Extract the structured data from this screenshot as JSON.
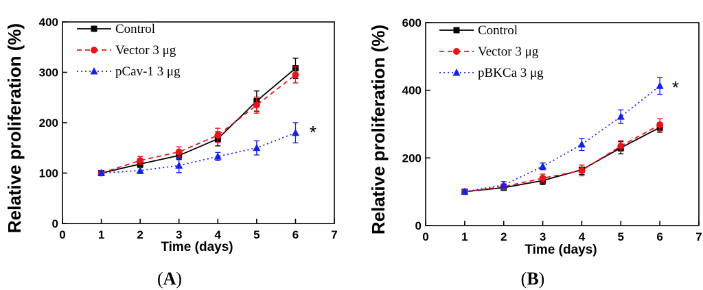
{
  "chart_data": [
    {
      "type": "line",
      "panel_label": "A",
      "panel_letter": "A",
      "xlabel": "Time (days)",
      "ylabel": "Relative proliferation (%)",
      "xlim": [
        0,
        7
      ],
      "ylim": [
        0,
        400
      ],
      "xticks": [
        0,
        1,
        2,
        3,
        4,
        5,
        6,
        7
      ],
      "yticks": [
        0,
        100,
        200,
        300,
        400
      ],
      "legend_position": "top-left",
      "annotation": "*",
      "annotation_x": 6.45,
      "annotation_y": 185,
      "x": [
        1,
        2,
        3,
        4,
        5,
        6
      ],
      "series": [
        {
          "name": "Control",
          "legend_label": "Control",
          "color": "#000000",
          "dash": "solid",
          "marker": "square",
          "values": [
            100,
            118,
            135,
            168,
            243,
            308
          ],
          "errors": [
            4,
            6,
            8,
            14,
            20,
            20
          ]
        },
        {
          "name": "Vector 3 μg",
          "legend_label": "Vector  3 μg",
          "color": "#e8141b",
          "dash": "dashed",
          "marker": "circle",
          "values": [
            100,
            125,
            142,
            175,
            235,
            295
          ],
          "errors": [
            4,
            8,
            10,
            14,
            16,
            16
          ]
        },
        {
          "name": "pCav-1 3 μg",
          "legend_label": "pCav-1 3 μg",
          "color": "#1520e8",
          "dash": "dotted",
          "marker": "triangle",
          "values": [
            100,
            105,
            115,
            133,
            150,
            180
          ],
          "errors": [
            4,
            6,
            14,
            8,
            14,
            20
          ]
        }
      ]
    },
    {
      "type": "line",
      "panel_label": "B",
      "panel_letter": "B",
      "xlabel": "Time (days)",
      "ylabel": "Relative proliferation (%)",
      "xlim": [
        0,
        7
      ],
      "ylim": [
        0,
        600
      ],
      "xticks": [
        0,
        1,
        2,
        3,
        4,
        5,
        6,
        7
      ],
      "yticks": [
        0,
        200,
        400,
        600
      ],
      "legend_position": "top-left",
      "annotation": "*",
      "annotation_x": 6.4,
      "annotation_y": 415,
      "x": [
        1,
        2,
        3,
        4,
        5,
        6
      ],
      "series": [
        {
          "name": "Control",
          "legend_label": "Control",
          "color": "#000000",
          "dash": "solid",
          "marker": "square",
          "values": [
            100,
            112,
            133,
            165,
            230,
            290
          ],
          "errors": [
            6,
            8,
            12,
            14,
            18,
            14
          ]
        },
        {
          "name": "Vector 3 μg",
          "legend_label": "Vector 3 μg",
          "color": "#e8141b",
          "dash": "dashed",
          "marker": "circle",
          "values": [
            100,
            115,
            140,
            163,
            235,
            298
          ],
          "errors": [
            6,
            8,
            12,
            16,
            16,
            18
          ]
        },
        {
          "name": "pBKCa 3 μg",
          "legend_label": "pBKCa 3 μg",
          "color": "#1520e8",
          "dash": "dotted",
          "marker": "triangle",
          "values": [
            100,
            120,
            175,
            240,
            322,
            413
          ],
          "errors": [
            6,
            10,
            10,
            18,
            20,
            25
          ]
        }
      ]
    }
  ]
}
